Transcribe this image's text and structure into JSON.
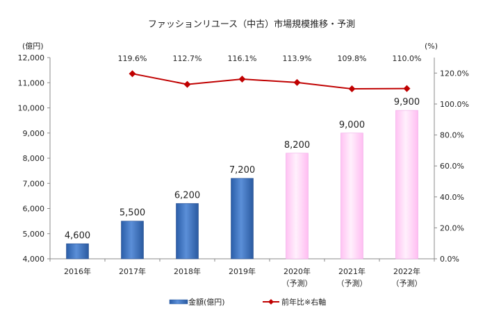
{
  "chart_data": {
    "type": "bar",
    "title": "ファッションリユース（中古）市場規模推移・予測",
    "left_unit": "(億円)",
    "right_unit": "(%)",
    "categories": [
      "2016年",
      "2017年",
      "2018年",
      "2019年",
      "2020年",
      "2021年",
      "2022年"
    ],
    "category_sublabels": [
      "",
      "",
      "",
      "",
      "（予測）",
      "（予測）",
      "（予測）"
    ],
    "ylim": [
      4000,
      12000
    ],
    "yticks": [
      "4,000",
      "5,000",
      "6,000",
      "7,000",
      "8,000",
      "9,000",
      "10,000",
      "11,000",
      "12,000"
    ],
    "y2lim": [
      0,
      130
    ],
    "y2ticks": [
      "0.0%",
      "20.0%",
      "40.0%",
      "60.0%",
      "80.0%",
      "100.0%",
      "120.0%"
    ],
    "grid": false,
    "legend_position": "bottom",
    "series": [
      {
        "name": "金額(億円)",
        "type": "bar",
        "axis": "left",
        "values": [
          4600,
          5500,
          6200,
          7200,
          8200,
          9000,
          9900
        ],
        "labels": [
          "4,600",
          "5,500",
          "6,200",
          "7,200",
          "8,200",
          "9,000",
          "9,900"
        ],
        "forecast": [
          false,
          false,
          false,
          false,
          true,
          true,
          true
        ],
        "color": "#3a72c4",
        "forecast_color": "#ffc8f5"
      },
      {
        "name": "前年比※右軸",
        "type": "line",
        "axis": "right",
        "values": [
          null,
          119.6,
          112.7,
          116.1,
          113.9,
          109.8,
          110.0
        ],
        "labels": [
          "",
          "119.6%",
          "112.7%",
          "116.1%",
          "113.9%",
          "109.8%",
          "110.0%"
        ],
        "color": "#c00000"
      }
    ]
  }
}
